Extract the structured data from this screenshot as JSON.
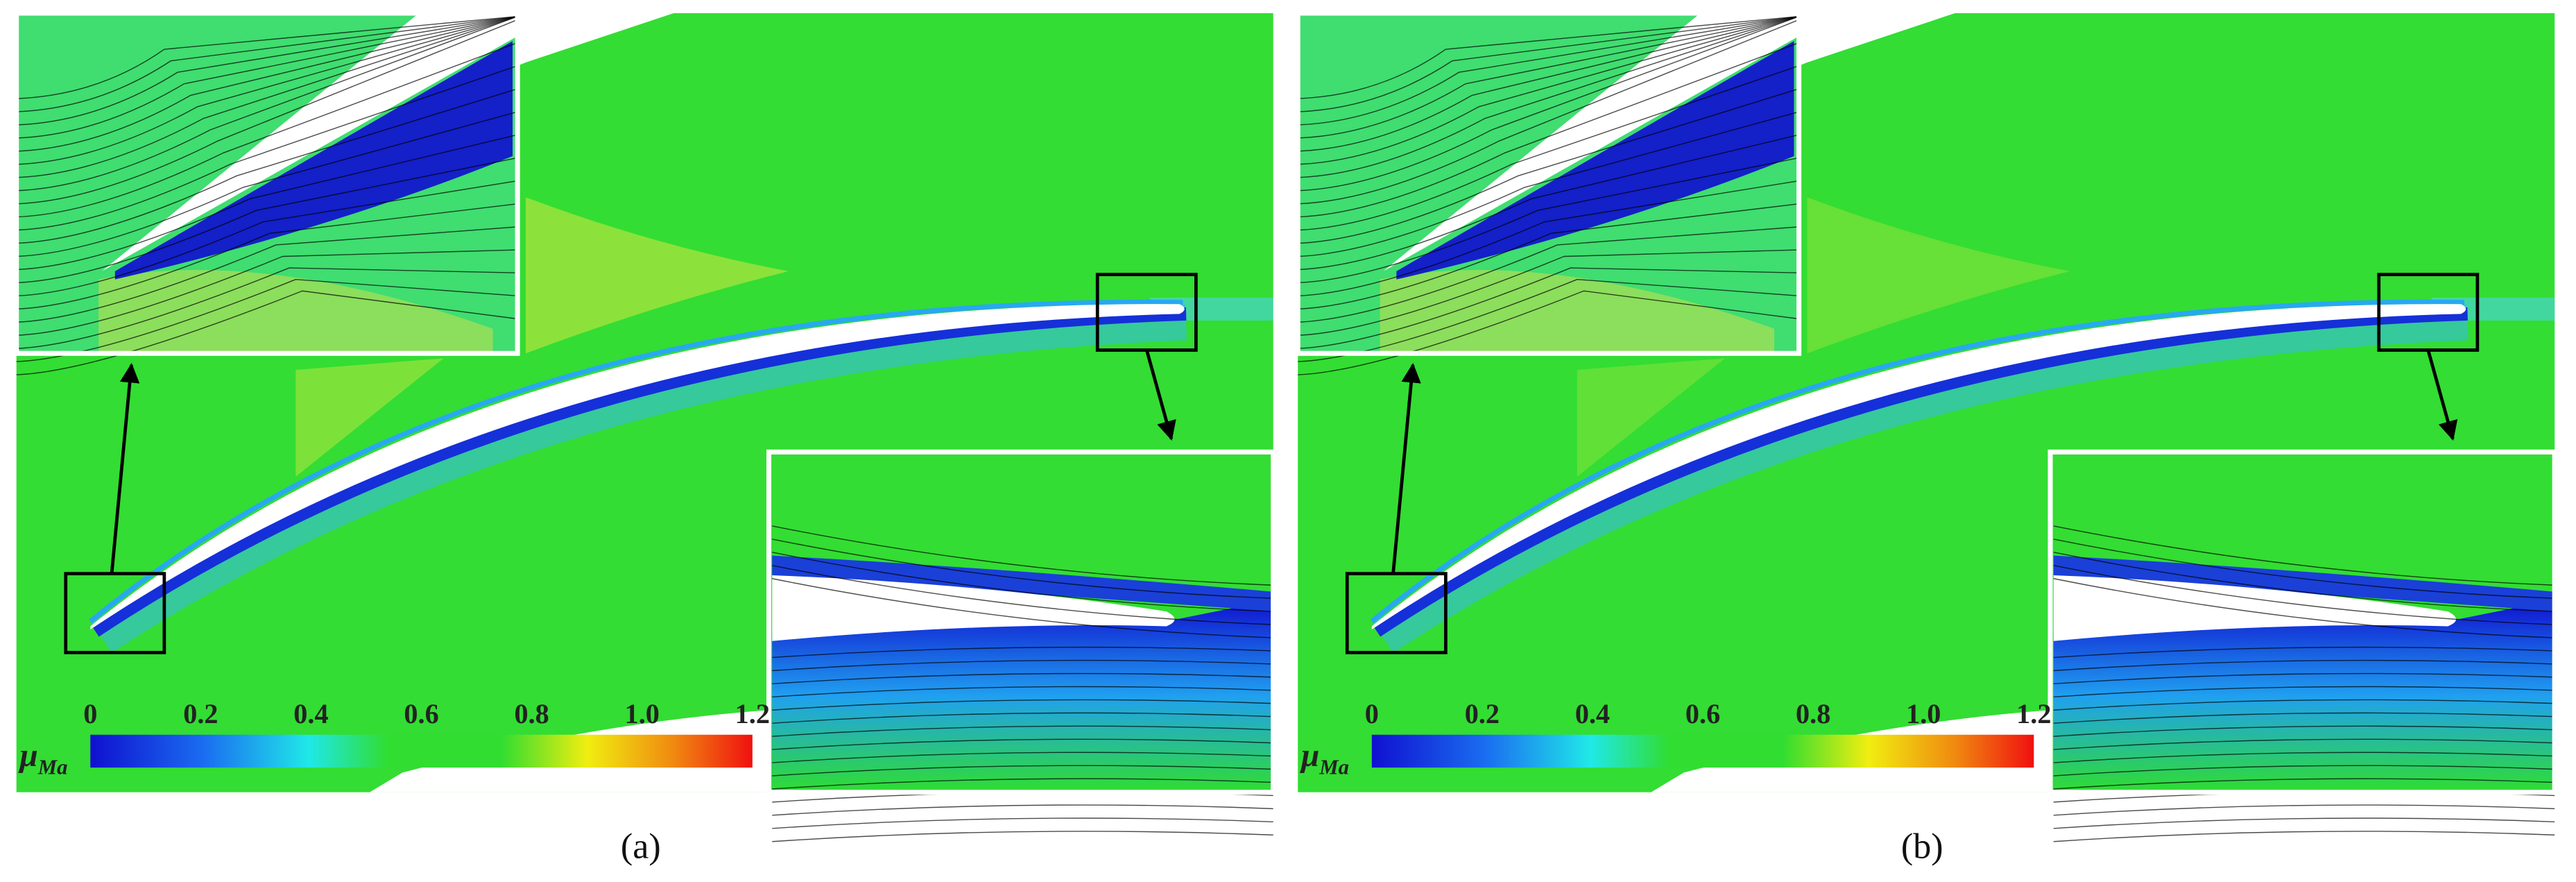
{
  "panels": [
    {
      "label": "(a)"
    },
    {
      "label": "(b)"
    }
  ],
  "colorbar": {
    "symbol": "μ",
    "subscript": "Ma",
    "ticks": [
      "0",
      "0.2",
      "0.4",
      "0.6",
      "0.8",
      "1.0",
      "1.2"
    ]
  }
}
